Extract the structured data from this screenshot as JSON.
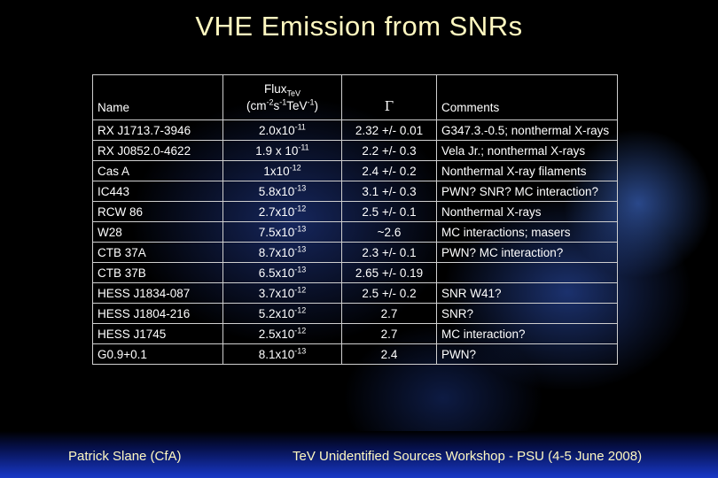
{
  "title": "VHE Emission from SNRs",
  "table": {
    "headers": {
      "name": "Name",
      "flux_main": "Flux",
      "flux_sub": "TeV",
      "flux_unit_open": "(cm",
      "flux_exp1": "-2",
      "flux_s": "s",
      "flux_exp2": "-1",
      "flux_tev": "TeV",
      "flux_exp3": "-1",
      "flux_unit_close": ")",
      "gamma": "Γ",
      "comments": "Comments"
    },
    "rows": [
      {
        "name": "RX J1713.7-3946",
        "flux_mant": "2.0x10",
        "flux_exp": "-11",
        "gamma": "2.32 +/- 0.01",
        "comment": "G347.3.-0.5; nonthermal X-rays"
      },
      {
        "name": "RX J0852.0-4622",
        "flux_mant": "1.9 x 10",
        "flux_exp": "-11",
        "gamma": "2.2 +/- 0.3",
        "comment": "Vela Jr.; nonthermal X-rays"
      },
      {
        "name": "Cas A",
        "flux_mant": "1x10",
        "flux_exp": "-12",
        "gamma": "2.4 +/- 0.2",
        "comment": "Nonthermal X-ray filaments"
      },
      {
        "name": "IC443",
        "flux_mant": "5.8x10",
        "flux_exp": "-13",
        "gamma": "3.1 +/- 0.3",
        "comment": "PWN? SNR? MC interaction?"
      },
      {
        "name": "RCW 86",
        "flux_mant": "2.7x10",
        "flux_exp": "-12",
        "gamma": "2.5 +/- 0.1",
        "comment": "Nonthermal X-rays"
      },
      {
        "name": "W28",
        "flux_mant": "7.5x10",
        "flux_exp": "-13",
        "gamma": "~2.6",
        "comment": "MC interactions; masers"
      },
      {
        "name": "CTB 37A",
        "flux_mant": "8.7x10",
        "flux_exp": "-13",
        "gamma": "2.3 +/- 0.1",
        "comment": "PWN? MC interaction?"
      },
      {
        "name": "CTB 37B",
        "flux_mant": "6.5x10",
        "flux_exp": "-13",
        "gamma": "2.65 +/- 0.19",
        "comment": ""
      },
      {
        "name": "HESS J1834-087",
        "flux_mant": "3.7x10",
        "flux_exp": "-12",
        "gamma": "2.5 +/- 0.2",
        "comment": "SNR W41?"
      },
      {
        "name": "HESS J1804-216",
        "flux_mant": "5.2x10",
        "flux_exp": "-12",
        "gamma": "2.7",
        "comment": "SNR?"
      },
      {
        "name": "HESS J1745",
        "flux_mant": "2.5x10",
        "flux_exp": "-12",
        "gamma": "2.7",
        "comment": "MC interaction?"
      },
      {
        "name": "G0.9+0.1",
        "flux_mant": "8.1x10",
        "flux_exp": "-13",
        "gamma": "2.4",
        "comment": "PWN?"
      }
    ]
  },
  "footer": {
    "author": "Patrick Slane (CfA)",
    "event": "TeV Unidentified Sources Workshop - PSU (4-5 June 2008)"
  },
  "colors": {
    "background": "#000000",
    "title_text": "#fff8c0",
    "footer_band": "#1838c8"
  }
}
